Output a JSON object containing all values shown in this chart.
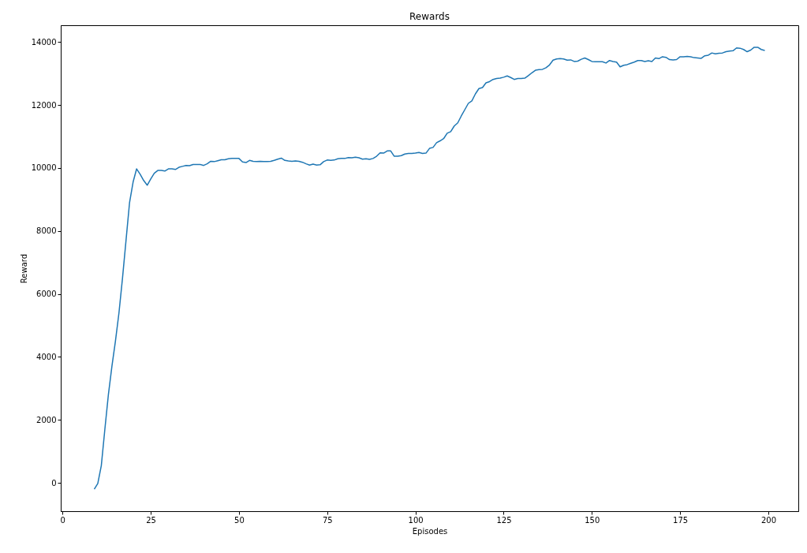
{
  "chart_data": {
    "type": "line",
    "title": "Rewards",
    "xlabel": "Episodes",
    "ylabel": "Reward",
    "x": [
      9,
      10,
      11,
      12,
      13,
      14,
      15,
      16,
      17,
      18,
      19,
      20,
      21,
      22,
      23,
      24,
      25,
      26,
      27,
      28,
      29,
      30,
      31,
      32,
      33,
      34,
      35,
      36,
      37,
      38,
      39,
      40,
      41,
      42,
      43,
      44,
      45,
      46,
      47,
      48,
      49,
      50,
      51,
      52,
      53,
      54,
      55,
      56,
      57,
      58,
      59,
      60,
      61,
      62,
      63,
      64,
      65,
      66,
      67,
      68,
      69,
      70,
      71,
      72,
      73,
      74,
      75,
      76,
      77,
      78,
      79,
      80,
      81,
      82,
      83,
      84,
      85,
      86,
      87,
      88,
      89,
      90,
      91,
      92,
      93,
      94,
      95,
      96,
      97,
      98,
      99,
      100,
      101,
      102,
      103,
      104,
      105,
      106,
      107,
      108,
      109,
      110,
      111,
      112,
      113,
      114,
      115,
      116,
      117,
      118,
      119,
      120,
      121,
      122,
      123,
      124,
      125,
      126,
      127,
      128,
      129,
      130,
      131,
      132,
      133,
      134,
      135,
      136,
      137,
      138,
      139,
      140,
      141,
      142,
      143,
      144,
      145,
      146,
      147,
      148,
      149,
      150,
      151,
      152,
      153,
      154,
      155,
      156,
      157,
      158,
      159,
      160,
      161,
      162,
      163,
      164,
      165,
      166,
      167,
      168,
      169,
      170,
      171,
      172,
      173,
      174,
      175,
      176,
      177,
      178,
      179,
      180,
      181,
      182,
      183,
      184,
      185,
      186,
      187,
      188,
      189,
      190,
      191,
      192,
      193,
      194,
      195,
      196,
      197,
      198,
      199
    ],
    "series": [
      {
        "color": "#1f77b4",
        "values": [
          -200,
          -20,
          550,
          1700,
          2800,
          3700,
          4500,
          5400,
          6500,
          7700,
          8900,
          9550,
          9970,
          9800,
          9600,
          9450,
          9650,
          9830,
          9920,
          9920,
          9900,
          9970,
          9970,
          9950,
          10020,
          10050,
          10080,
          10070,
          10110,
          10110,
          10110,
          10080,
          10130,
          10210,
          10200,
          10230,
          10260,
          10260,
          10290,
          10300,
          10300,
          10300,
          10190,
          10170,
          10240,
          10210,
          10200,
          10210,
          10200,
          10200,
          10210,
          10240,
          10280,
          10310,
          10240,
          10220,
          10210,
          10220,
          10210,
          10180,
          10130,
          10090,
          10120,
          10090,
          10100,
          10200,
          10250,
          10240,
          10250,
          10290,
          10300,
          10300,
          10330,
          10320,
          10340,
          10320,
          10280,
          10290,
          10270,
          10300,
          10370,
          10480,
          10470,
          10540,
          10540,
          10370,
          10370,
          10390,
          10440,
          10460,
          10460,
          10470,
          10490,
          10460,
          10470,
          10620,
          10650,
          10800,
          10860,
          10930,
          11100,
          11150,
          11330,
          11430,
          11650,
          11850,
          12050,
          12130,
          12350,
          12520,
          12550,
          12700,
          12740,
          12810,
          12840,
          12850,
          12880,
          12920,
          12870,
          12810,
          12840,
          12840,
          12850,
          12930,
          13020,
          13100,
          13120,
          13130,
          13180,
          13270,
          13420,
          13460,
          13470,
          13460,
          13420,
          13430,
          13380,
          13390,
          13450,
          13490,
          13440,
          13380,
          13370,
          13370,
          13370,
          13330,
          13410,
          13380,
          13360,
          13210,
          13260,
          13280,
          13320,
          13360,
          13410,
          13410,
          13380,
          13400,
          13380,
          13490,
          13470,
          13530,
          13510,
          13440,
          13430,
          13440,
          13530,
          13530,
          13540,
          13530,
          13500,
          13490,
          13480,
          13560,
          13580,
          13650,
          13620,
          13640,
          13650,
          13690,
          13710,
          13720,
          13810,
          13800,
          13760,
          13690,
          13740,
          13830,
          13830,
          13760,
          13730
        ]
      }
    ],
    "xlim": [
      -0.5,
      208.5
    ],
    "xticks": [
      0,
      25,
      50,
      75,
      100,
      125,
      150,
      175,
      200
    ],
    "ylim": [
      -900,
      14530
    ],
    "yticks": [
      0,
      2000,
      4000,
      6000,
      8000,
      10000,
      12000,
      14000
    ],
    "grid": false,
    "legend": false,
    "marker": "none",
    "line_style": "solid"
  }
}
